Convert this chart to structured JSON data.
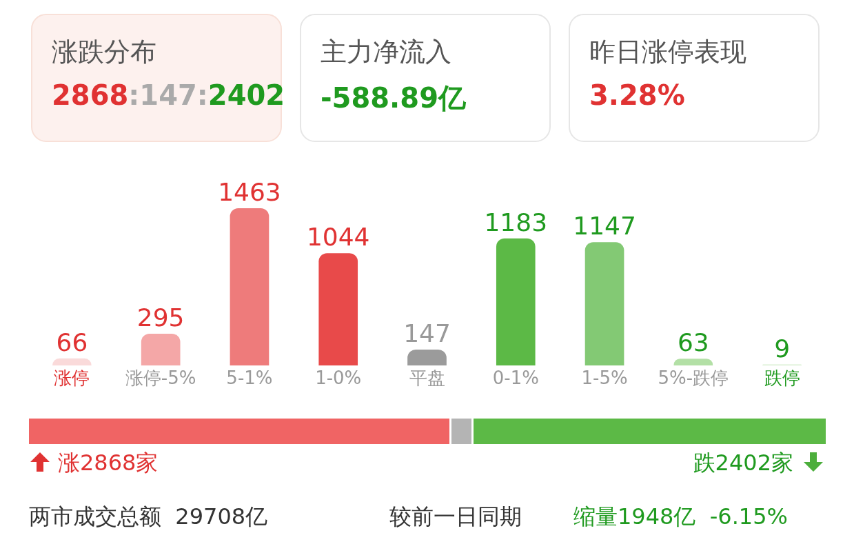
{
  "chart_data": [
    {
      "type": "other",
      "annotations": [
        "涨跌分布",
        "2868:147:2402",
        "主力净流入",
        "-588.89亿",
        "昨日涨停表现",
        "3.28%"
      ]
    },
    {
      "type": "bar",
      "categories": [
        "涨停",
        "涨停-5%",
        "5-1%",
        "1-0%",
        "平盘",
        "0-1%",
        "1-5%",
        "5%-跌停",
        "跌停"
      ],
      "values": [
        66,
        295,
        1463,
        1044,
        147,
        1183,
        1147,
        63,
        9
      ],
      "colors": [
        "#fadada",
        "#f4a7a7",
        "#ee7b7b",
        "#e84a4a",
        "#9b9b9b",
        "#5cb946",
        "#83c974",
        "#b3e0a6",
        "#d8efd1"
      ],
      "data_labels": true
    },
    {
      "type": "bar",
      "orientation": "horizontal",
      "stacked": true,
      "categories": [
        null
      ],
      "tick_labels": false,
      "series": [
        {
          "color": "#f06464",
          "values": [
            2868
          ],
          "value_labels": [
            "涨2868家"
          ]
        },
        {
          "color": "#b4b4b4",
          "values": [
            147
          ],
          "value_labels": [
            null
          ]
        },
        {
          "color": "#5cb946",
          "values": [
            2402
          ],
          "value_labels": [
            "跌2402家"
          ]
        }
      ],
      "annotations": [
        "两市成交总额  29708亿",
        "较前一日同期",
        "缩量1948亿  -6.15%"
      ]
    }
  ]
}
